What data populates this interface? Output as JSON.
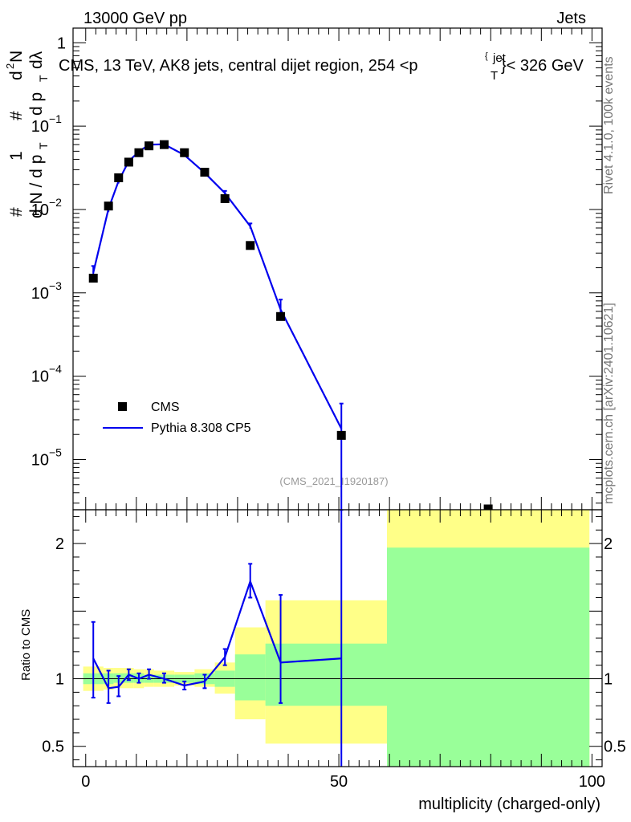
{
  "header": {
    "left": "13000 GeV pp",
    "right": "Jets"
  },
  "side_labels": {
    "rivet": "Rivet 4.1.0,  100k events",
    "mcplots": "mcplots.cern.ch [arXiv:2401.10621]"
  },
  "chart_data": [
    {
      "type": "scatter",
      "title_main": "CMS, 13 TeV, AK8 jets, central dijet region, 254 <p",
      "title_sup": "jet",
      "title_sub": "T",
      "title_end": "}< 326 GeV",
      "title_brace": "{",
      "ylabel_parts": [
        "#",
        "1",
        "d N / d p",
        "T",
        "#",
        "d",
        "2",
        "N",
        "d p",
        "T",
        "dλ"
      ],
      "yscale": "log",
      "ylim": [
        2.5e-06,
        1.5
      ],
      "xlim": [
        -2.5,
        102
      ],
      "yticks": [
        {
          "value": 1,
          "base": "1",
          "exp": ""
        },
        {
          "value": 0.1,
          "base": "10",
          "exp": "−1"
        },
        {
          "value": 0.01,
          "base": "10",
          "exp": "−2"
        },
        {
          "value": 0.001,
          "base": "10",
          "exp": "−3"
        },
        {
          "value": 0.0001,
          "base": "10",
          "exp": "−4"
        },
        {
          "value": 1e-05,
          "base": "10",
          "exp": "−5"
        }
      ],
      "watermark": "(CMS_2021_I1920187)",
      "legend": [
        {
          "name": "CMS",
          "marker": "square",
          "color": "#000000"
        },
        {
          "name": "Pythia 8.308 CP5",
          "marker": "line",
          "color": "#0000ee"
        }
      ],
      "series": [
        {
          "name": "CMS",
          "x": [
            1.5,
            4.5,
            6.5,
            8.5,
            10.5,
            12.5,
            15.5,
            19.5,
            23.5,
            27.5,
            32.5,
            38.5,
            50.5,
            79.5
          ],
          "y": [
            0.0015,
            0.011,
            0.024,
            0.037,
            0.048,
            0.058,
            0.06,
            0.048,
            0.028,
            0.0135,
            0.0037,
            0.00052,
            1.95e-05,
            2.1e-06
          ]
        },
        {
          "name": "Pythia 8.308 CP5",
          "x": [
            1.5,
            4.5,
            6.5,
            8.5,
            10.5,
            12.5,
            15.5,
            19.5,
            23.5,
            27.5,
            32.5,
            38.5,
            50.5
          ],
          "y": [
            0.00175,
            0.0102,
            0.022,
            0.038,
            0.0495,
            0.06,
            0.0605,
            0.045,
            0.0275,
            0.0157,
            0.0063,
            0.00063,
            2.35e-05
          ],
          "err_lo": [
            0.00155,
            0.0093,
            0.0205,
            0.036,
            0.0475,
            0.058,
            0.059,
            0.043,
            0.026,
            0.0148,
            0.0059,
            0.00051,
            2.4e-06
          ],
          "err_hi": [
            0.0021,
            0.0118,
            0.0238,
            0.0402,
            0.0515,
            0.062,
            0.062,
            0.047,
            0.029,
            0.0167,
            0.0068,
            0.00083,
            4.7e-05
          ]
        }
      ]
    },
    {
      "type": "line",
      "ylabel": "Ratio to CMS",
      "xlabel": "multiplicity (charged-only)",
      "ylim": [
        0.35,
        2.25
      ],
      "xlim": [
        -2.5,
        102
      ],
      "xticks": [
        0,
        50,
        100
      ],
      "xtick_labels": [
        "0",
        "50",
        "100"
      ],
      "yticks": [
        0.5,
        1,
        2
      ],
      "ytick_labels": [
        "0.5",
        "1",
        "2"
      ],
      "reference": 1,
      "bands": [
        {
          "x0": -0.5,
          "x1": 3.5,
          "y_lo": 0.91,
          "y_hi": 1.09,
          "g_lo": 0.96,
          "g_hi": 1.04
        },
        {
          "x0": 3.5,
          "x1": 5.5,
          "y_lo": 0.92,
          "y_hi": 1.08,
          "g_lo": 0.96,
          "g_hi": 1.04
        },
        {
          "x0": 5.5,
          "x1": 7.5,
          "y_lo": 0.93,
          "y_hi": 1.08,
          "g_lo": 0.97,
          "g_hi": 1.04
        },
        {
          "x0": 7.5,
          "x1": 9.5,
          "y_lo": 0.93,
          "y_hi": 1.08,
          "g_lo": 0.97,
          "g_hi": 1.04
        },
        {
          "x0": 9.5,
          "x1": 11.5,
          "y_lo": 0.93,
          "y_hi": 1.07,
          "g_lo": 0.97,
          "g_hi": 1.04
        },
        {
          "x0": 11.5,
          "x1": 13.5,
          "y_lo": 0.94,
          "y_hi": 1.07,
          "g_lo": 0.97,
          "g_hi": 1.03
        },
        {
          "x0": 13.5,
          "x1": 17.5,
          "y_lo": 0.94,
          "y_hi": 1.06,
          "g_lo": 0.97,
          "g_hi": 1.03
        },
        {
          "x0": 17.5,
          "x1": 21.5,
          "y_lo": 0.95,
          "y_hi": 1.05,
          "g_lo": 0.97,
          "g_hi": 1.03
        },
        {
          "x0": 21.5,
          "x1": 25.5,
          "y_lo": 0.94,
          "y_hi": 1.07,
          "g_lo": 0.96,
          "g_hi": 1.04
        },
        {
          "x0": 25.5,
          "x1": 29.5,
          "y_lo": 0.89,
          "y_hi": 1.12,
          "g_lo": 0.94,
          "g_hi": 1.06
        },
        {
          "x0": 29.5,
          "x1": 35.5,
          "y_lo": 0.7,
          "y_hi": 1.38,
          "g_lo": 0.84,
          "g_hi": 1.18
        },
        {
          "x0": 35.5,
          "x1": 59.5,
          "y_lo": 0.52,
          "y_hi": 1.58,
          "g_lo": 0.8,
          "g_hi": 1.26
        },
        {
          "x0": 59.5,
          "x1": 99.5,
          "y_lo": 0.3,
          "y_hi": 2.35,
          "g_lo": 0.3,
          "g_hi": 1.97
        }
      ],
      "band_colors": {
        "yellow": "#ffff88",
        "green": "#99ff99"
      },
      "series": [
        {
          "name": "Pythia 8.308 CP5",
          "x": [
            1.5,
            4.5,
            6.5,
            8.5,
            10.5,
            12.5,
            15.5,
            19.5,
            23.5,
            27.5,
            32.5,
            38.5,
            50.5
          ],
          "y": [
            1.15,
            0.93,
            0.94,
            1.03,
            1.0,
            1.03,
            1.0,
            0.95,
            0.98,
            1.16,
            1.72,
            1.12,
            1.15
          ],
          "err_lo": [
            0.86,
            0.82,
            0.87,
            0.99,
            0.97,
            1.0,
            0.97,
            0.92,
            0.93,
            1.1,
            1.6,
            0.82,
            0.11
          ],
          "err_hi": [
            1.42,
            1.06,
            1.02,
            1.07,
            1.04,
            1.07,
            1.04,
            0.98,
            1.03,
            1.22,
            1.85,
            1.62,
            2.25
          ]
        }
      ]
    }
  ]
}
